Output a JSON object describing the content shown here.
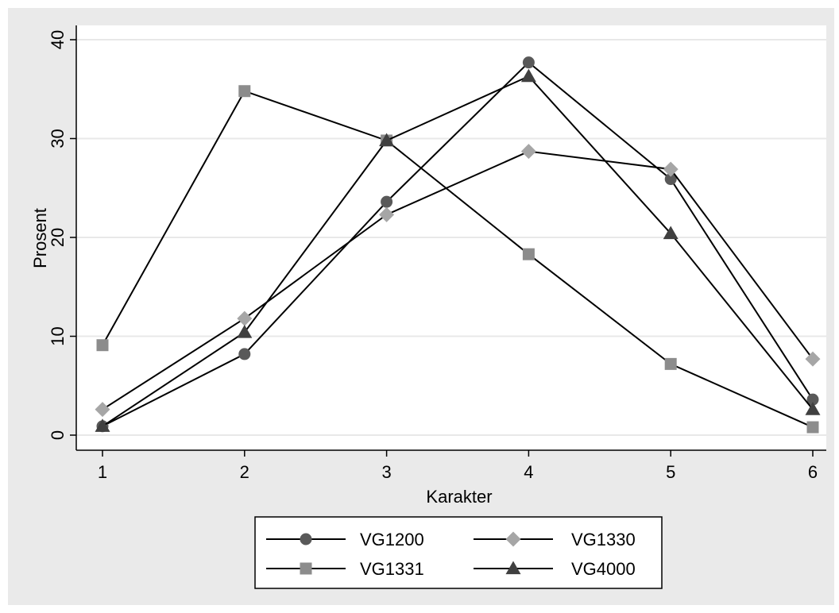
{
  "chart_data": {
    "type": "line",
    "xlabel": "Karakter",
    "ylabel": "Prosent",
    "x": [
      1,
      2,
      3,
      4,
      5,
      6
    ],
    "xlim": [
      1,
      6
    ],
    "ylim": [
      0,
      40
    ],
    "xticks": [
      "1",
      "2",
      "3",
      "4",
      "5",
      "6"
    ],
    "yticks": [
      "0",
      "10",
      "20",
      "30",
      "40"
    ],
    "grid": true,
    "legend_position": "bottom",
    "series": [
      {
        "name": "VG1200",
        "marker": "circle",
        "color": "#595959",
        "values": [
          0.9,
          8.2,
          23.6,
          37.7,
          25.9,
          3.6
        ]
      },
      {
        "name": "VG1330",
        "marker": "diamond",
        "color": "#a6a6a6",
        "values": [
          2.6,
          11.8,
          22.3,
          28.7,
          26.9,
          7.7
        ]
      },
      {
        "name": "VG1331",
        "marker": "square",
        "color": "#8c8c8c",
        "values": [
          9.1,
          34.8,
          29.8,
          18.3,
          7.2,
          0.8
        ]
      },
      {
        "name": "VG4000",
        "marker": "triangle",
        "color": "#404040",
        "values": [
          0.9,
          10.4,
          29.8,
          36.3,
          20.4,
          2.6
        ]
      }
    ],
    "colors": {
      "background": "#eaeaea",
      "plot_background": "#ffffff",
      "grid": "#e8e8e8",
      "line": "#000000"
    }
  }
}
